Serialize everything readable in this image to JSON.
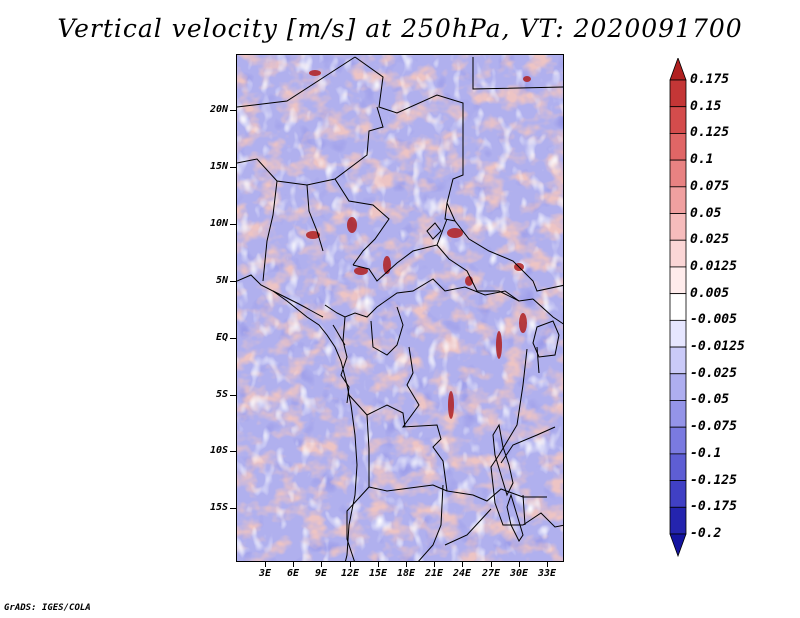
{
  "title": "Vertical velocity [m/s] at 250hPa, VT: 2020091700",
  "credit": "GrADS: IGES/COLA",
  "lat_labels": [
    "20N",
    "15N",
    "10N",
    "5N",
    "EQ",
    "5S",
    "10S",
    "15S"
  ],
  "lon_labels": [
    "3E",
    "6E",
    "9E",
    "12E",
    "15E",
    "18E",
    "21E",
    "24E",
    "27E",
    "30E",
    "33E"
  ],
  "colorbar": {
    "labels": [
      "0.175",
      "0.15",
      "0.125",
      "0.1",
      "0.075",
      "0.05",
      "0.025",
      "0.0125",
      "0.005",
      "-0.005",
      "-0.0125",
      "-0.025",
      "-0.05",
      "-0.075",
      "-0.1",
      "-0.125",
      "-0.175",
      "-0.2"
    ],
    "colors": [
      "#b02020",
      "#c43636",
      "#d44c4c",
      "#e06666",
      "#e88282",
      "#f0a0a0",
      "#f6bcbc",
      "#fbd6d6",
      "#ffecec",
      "#ffffff",
      "#e6e6ff",
      "#cacaf8",
      "#aeaef0",
      "#9494e8",
      "#7a7ae0",
      "#5e5ed4",
      "#4040c4",
      "#2424ae",
      "#1414a0"
    ]
  },
  "colors": {
    "frame": "#000000",
    "background": "#ffffff",
    "border": "#000000"
  }
}
